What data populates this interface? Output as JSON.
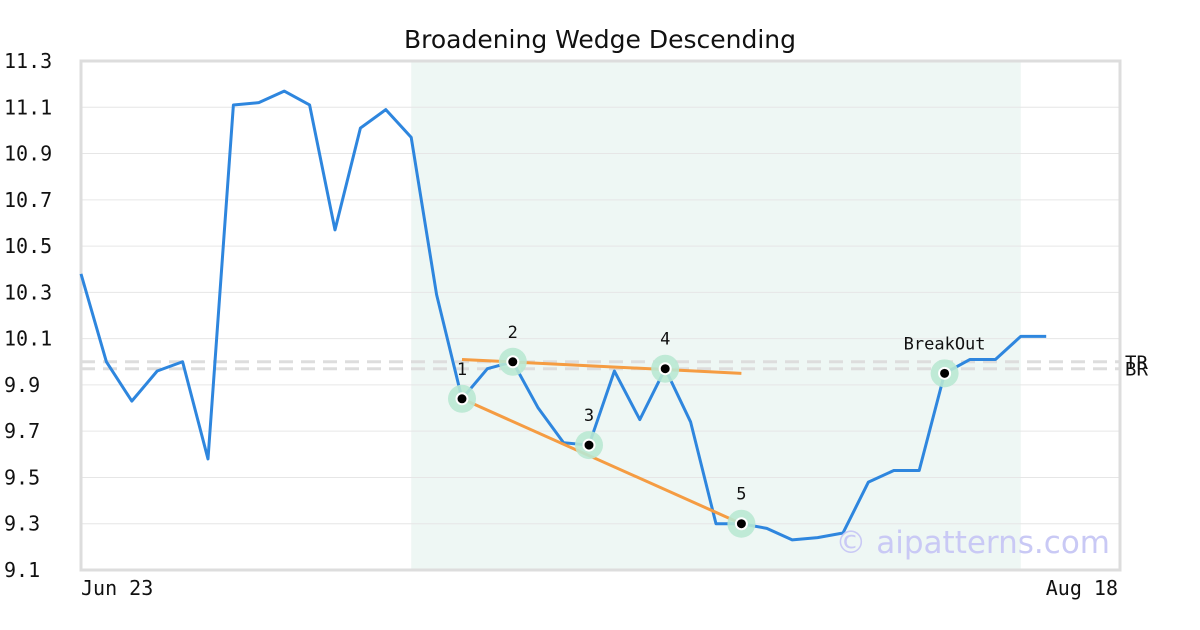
{
  "chart_data": {
    "type": "line",
    "title": "Broadening Wedge Descending",
    "xlabel": "",
    "ylabel": "",
    "ylim": [
      9.1,
      11.3
    ],
    "y_ticks": [
      9.1,
      9.3,
      9.5,
      9.7,
      9.9,
      10.1,
      10.3,
      10.5,
      10.7,
      10.9,
      11.1,
      11.3
    ],
    "y_tick_labels": [
      "9.1",
      "9.3",
      "9.5",
      "9.7",
      "9.9",
      "10.1",
      "10.3",
      "10.5",
      "10.7",
      "10.9",
      "11.1",
      "11.3"
    ],
    "x_tick_labels": [
      {
        "label": "Jun 23",
        "index": 0
      },
      {
        "label": "Aug 18",
        "index": 41
      }
    ],
    "grid": true,
    "series": [
      {
        "color": "#2e86de",
        "values": [
          10.38,
          10.0,
          9.83,
          9.96,
          10.0,
          9.58,
          11.11,
          11.12,
          11.17,
          11.11,
          10.57,
          11.01,
          11.09,
          10.97,
          10.29,
          9.84,
          9.97,
          10.0,
          9.8,
          9.65,
          9.64,
          9.96,
          9.75,
          9.97,
          9.74,
          9.3,
          9.3,
          9.28,
          9.23,
          9.24,
          9.26,
          9.48,
          9.53,
          9.53,
          9.95,
          10.01,
          10.01,
          10.11,
          10.11
        ]
      }
    ],
    "pattern_region": {
      "start_index": 13,
      "end_index": 37,
      "color": "#eef7f4"
    },
    "pattern_points": [
      {
        "label": "1",
        "index": 15,
        "value": 9.84
      },
      {
        "label": "2",
        "index": 17,
        "value": 10.0
      },
      {
        "label": "3",
        "index": 20,
        "value": 9.64
      },
      {
        "label": "4",
        "index": 23,
        "value": 9.97
      },
      {
        "label": "5",
        "index": 26,
        "value": 9.3
      },
      {
        "label": "BreakOut",
        "index": 34,
        "value": 9.95
      }
    ],
    "trend_lines": [
      {
        "from": {
          "index": 15,
          "value": 10.01
        },
        "to": {
          "index": 26,
          "value": 9.95
        },
        "color": "#f59c42"
      },
      {
        "from": {
          "index": 15,
          "value": 9.84
        },
        "to": {
          "index": 26,
          "value": 9.3
        },
        "color": "#f59c42"
      }
    ],
    "reference_lines": [
      {
        "label": "TR",
        "value": 10.0
      },
      {
        "label": "BR",
        "value": 9.97
      }
    ],
    "colors": {
      "line": "#2e86de",
      "marker_halo": "#b9e8d3",
      "trend": "#f59c42",
      "reference": "#dddddd",
      "grid": "#e6e6e6",
      "frame": "#dddddd"
    }
  },
  "watermark": "© aipatterns.com"
}
